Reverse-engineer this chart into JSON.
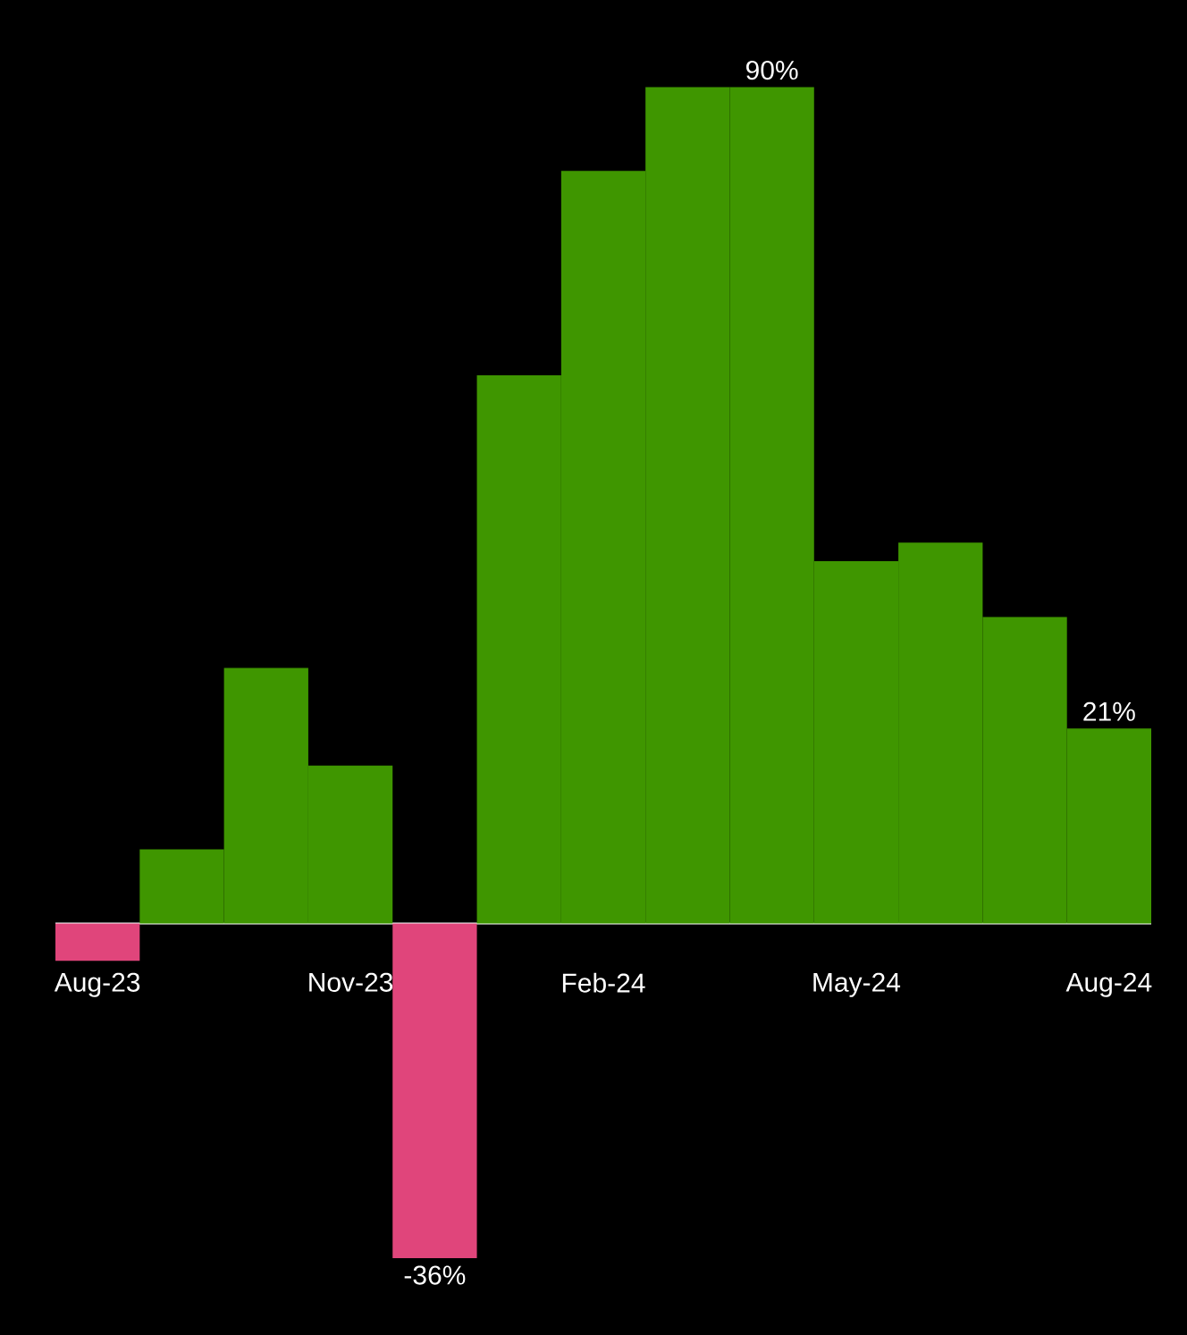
{
  "chart_data": {
    "type": "bar",
    "categories": [
      "Aug-23",
      null,
      null,
      "Nov-23",
      null,
      null,
      "Feb-24",
      null,
      null,
      "May-24",
      null,
      null,
      "Aug-24"
    ],
    "values": [
      -4,
      8,
      27.5,
      17,
      -36,
      59,
      81,
      90,
      90,
      39,
      41,
      33,
      21
    ],
    "colors": [
      "#e0457b",
      "#3f9600",
      "#3f9600",
      "#3f9600",
      "#e0457b",
      "#3f9600",
      "#3f9600",
      "#3f9600",
      "#3f9600",
      "#3f9600",
      "#3f9600",
      "#3f9600",
      "#3f9600"
    ],
    "value_labels": [
      null,
      null,
      null,
      null,
      "-36%",
      null,
      null,
      null,
      "90%",
      null,
      null,
      null,
      "21%"
    ],
    "tick_labels": "x"
  }
}
